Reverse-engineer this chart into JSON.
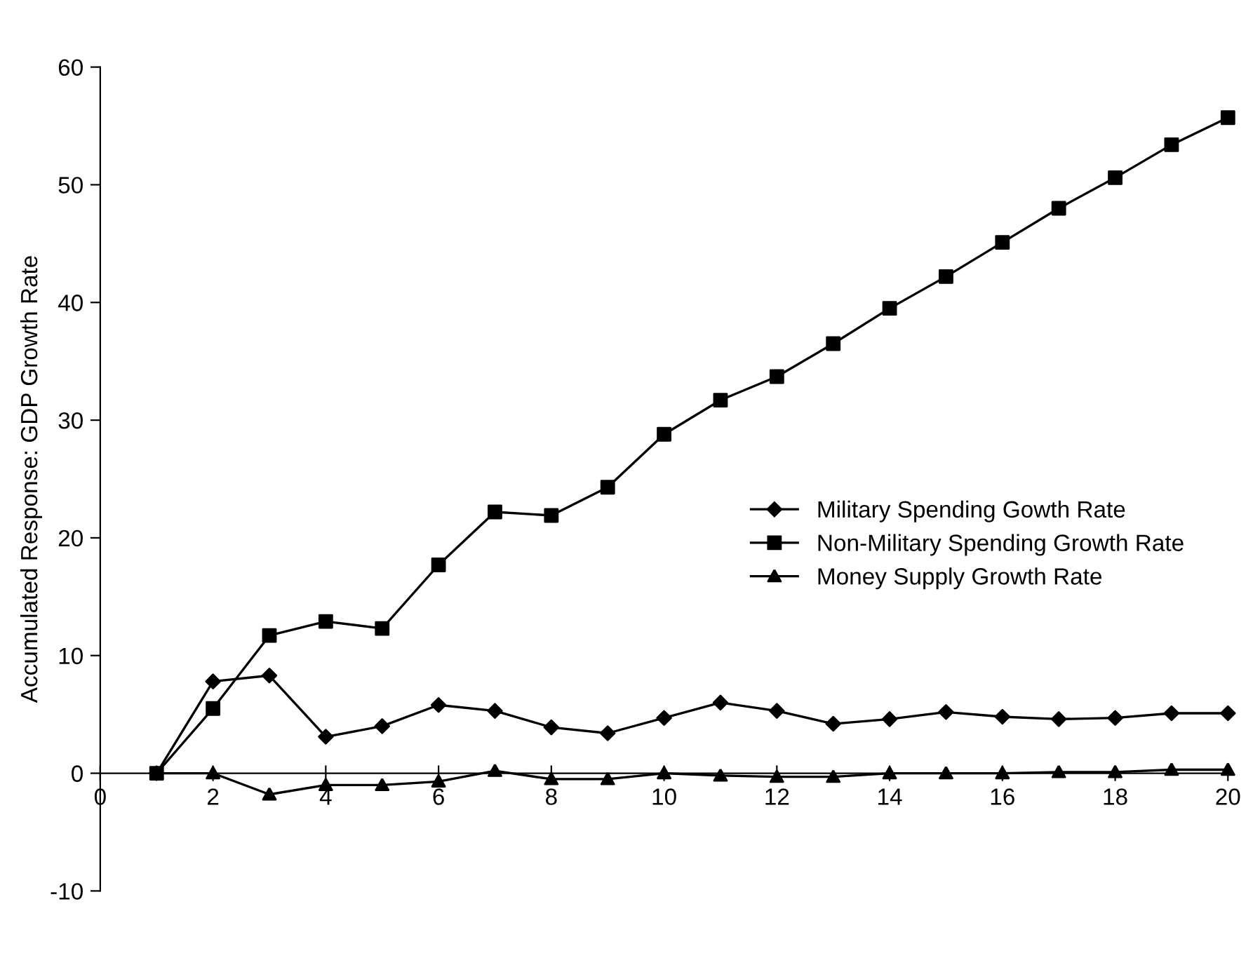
{
  "chart_data": {
    "type": "line",
    "ylabel": "Accumulated Response: GDP Growth Rate",
    "x": [
      1,
      2,
      3,
      4,
      5,
      6,
      7,
      8,
      9,
      10,
      11,
      12,
      13,
      14,
      15,
      16,
      17,
      18,
      19,
      20
    ],
    "series": [
      {
        "name": "Military Spending Gowth Rate",
        "color": "#000000",
        "marker": "diamond",
        "values": [
          0,
          7.8,
          8.3,
          3.1,
          4.0,
          5.8,
          5.3,
          3.9,
          3.4,
          4.7,
          6.0,
          5.3,
          4.2,
          4.6,
          5.2,
          4.8,
          4.6,
          4.7,
          5.1,
          5.1
        ]
      },
      {
        "name": "Non-Military Spending Growth Rate",
        "color": "#000000",
        "marker": "square",
        "values": [
          0,
          5.5,
          11.7,
          12.9,
          12.3,
          17.7,
          22.2,
          21.9,
          24.3,
          28.8,
          31.7,
          33.7,
          36.5,
          39.5,
          42.2,
          45.1,
          48.0,
          50.6,
          53.4,
          55.7
        ]
      },
      {
        "name": "Money Supply Growth Rate",
        "color": "#000000",
        "marker": "triangle",
        "values": [
          0,
          0,
          -1.8,
          -1.0,
          -1.0,
          -0.7,
          0.2,
          -0.5,
          -0.5,
          0,
          -0.2,
          -0.3,
          -0.3,
          0,
          0,
          0,
          0.1,
          0.1,
          0.3,
          0.3
        ]
      }
    ],
    "xlim": [
      0,
      20
    ],
    "xticks": [
      0,
      2,
      4,
      6,
      8,
      10,
      12,
      14,
      16,
      18,
      20
    ],
    "ylim": [
      -10,
      60
    ],
    "yticks": [
      -10,
      0,
      10,
      20,
      30,
      40,
      50,
      60
    ],
    "grid": false,
    "legend": "right",
    "line_style": "solid"
  }
}
